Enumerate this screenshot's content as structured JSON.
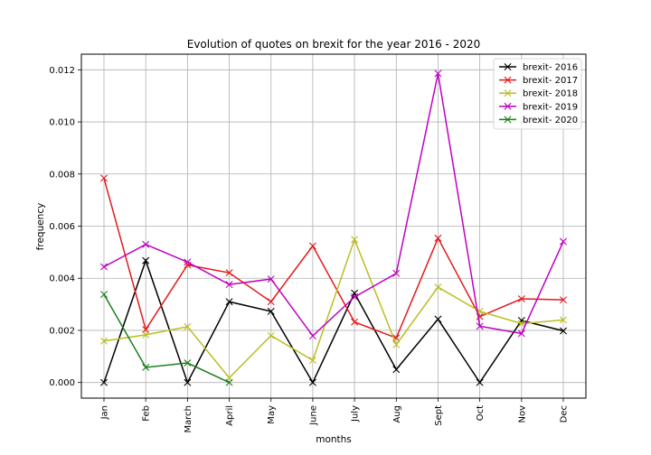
{
  "chart_data": {
    "type": "line",
    "title": "Evolution of quotes on brexit for the year 2016 - 2020",
    "xlabel": "months",
    "ylabel": "frequency",
    "categories": [
      "Jan",
      "Feb",
      "March",
      "April",
      "May",
      "June",
      "July",
      "Aug",
      "Sept",
      "Oct",
      "Nov",
      "Dec"
    ],
    "ylim": [
      -0.0006,
      0.0126
    ],
    "yticks": [
      "0.000",
      "0.002",
      "0.004",
      "0.006",
      "0.008",
      "0.010",
      "0.012"
    ],
    "ytick_values": [
      0,
      0.002,
      0.004,
      0.006,
      0.008,
      0.01,
      0.012
    ],
    "grid": true,
    "marker": "x",
    "legend_position": "top-right",
    "series": [
      {
        "name": "brexit- 2016",
        "color": "#000000",
        "values": [
          0.0,
          0.00468,
          0.0,
          0.0031,
          0.00273,
          0.0,
          0.00343,
          0.0005,
          0.00243,
          0.0,
          0.00238,
          0.00198
        ]
      },
      {
        "name": "brexit- 2017",
        "color": "#e41a1c",
        "values": [
          0.00784,
          0.00203,
          0.00451,
          0.00421,
          0.0031,
          0.00524,
          0.00232,
          0.00171,
          0.00554,
          0.00253,
          0.00321,
          0.00317
        ]
      },
      {
        "name": "brexit- 2018",
        "color": "#bcbd22",
        "values": [
          0.00159,
          0.00183,
          0.00214,
          0.00018,
          0.0018,
          0.00085,
          0.00549,
          0.00145,
          0.00366,
          0.00273,
          0.00226,
          0.0024
        ]
      },
      {
        "name": "brexit- 2019",
        "color": "#c000c0",
        "values": [
          0.00444,
          0.0053,
          0.00462,
          0.00376,
          0.00397,
          0.00179,
          0.00328,
          0.00419,
          0.01186,
          0.00216,
          0.00188,
          0.00541
        ]
      },
      {
        "name": "brexit- 2020",
        "color": "#1a7f1a",
        "values": [
          0.00338,
          0.00058,
          0.00075,
          0.0,
          null,
          null,
          null,
          null,
          null,
          null,
          null,
          null
        ]
      }
    ]
  }
}
